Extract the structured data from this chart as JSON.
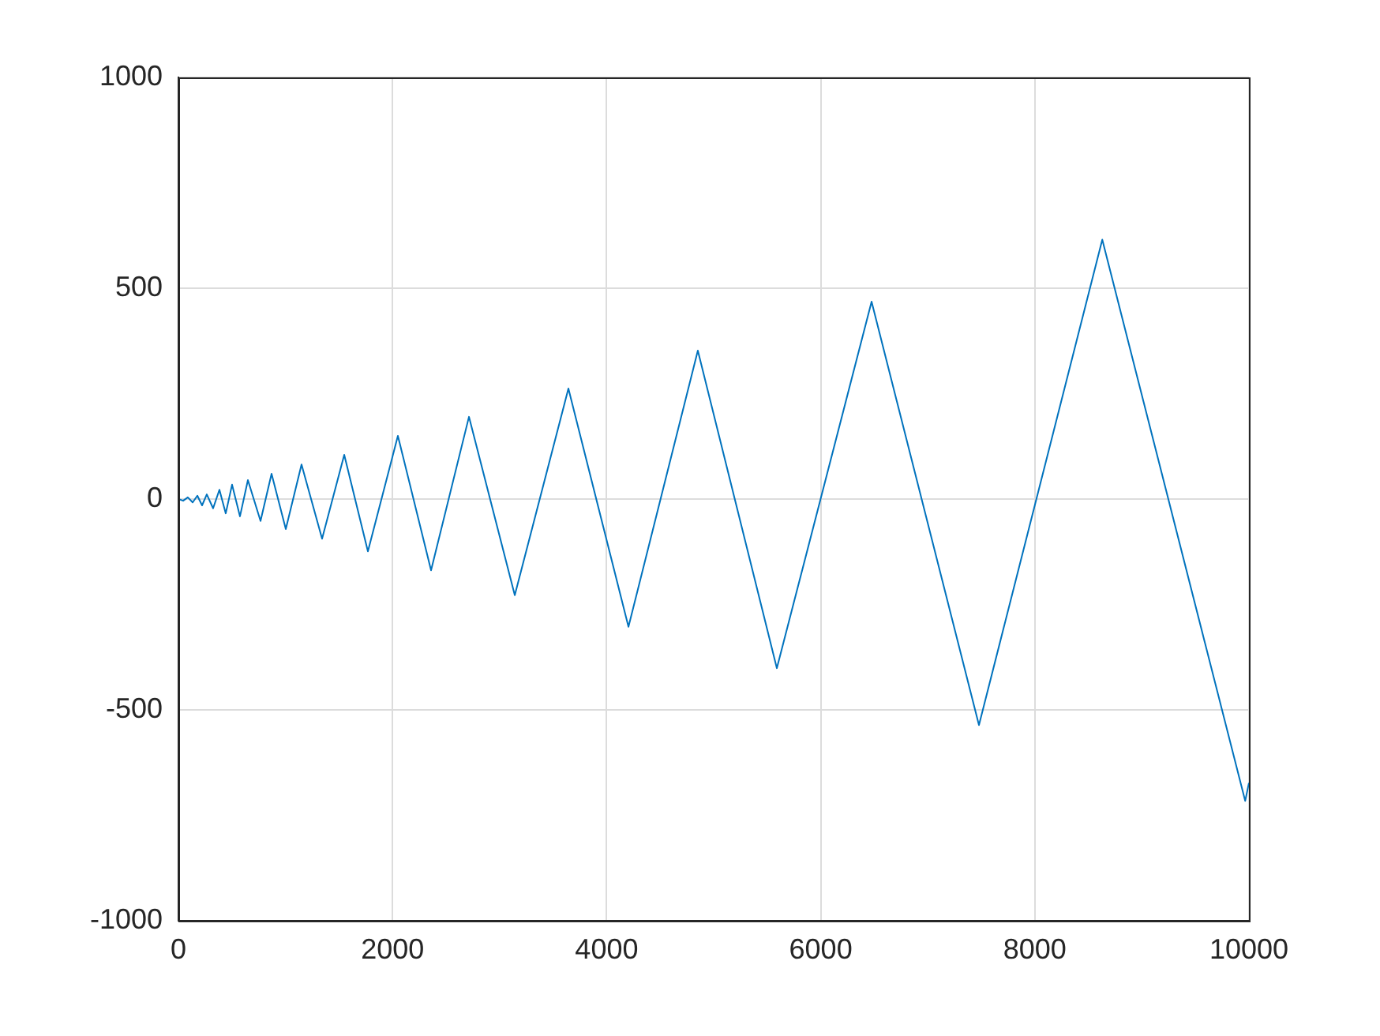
{
  "chart_data": {
    "type": "line",
    "x": [
      0,
      44,
      88,
      133,
      177,
      221,
      265,
      324,
      383,
      442,
      501,
      575,
      649,
      767,
      870,
      1003,
      1150,
      1342,
      1549,
      1770,
      2050,
      2360,
      2714,
      3142,
      3643,
      4204,
      4852,
      5590,
      6475,
      7478,
      8630,
      9965,
      10000
    ],
    "series": [
      {
        "color": "#0072bd",
        "values": [
          0,
          -4,
          4,
          -8,
          8,
          -15,
          11,
          -22,
          22,
          -34,
          34,
          -41,
          45,
          -52,
          60,
          -71,
          82,
          -94,
          105,
          -124,
          150,
          -169,
          195,
          -228,
          262,
          -303,
          352,
          -401,
          468,
          -536,
          615,
          -716,
          -673
        ]
      }
    ],
    "xlim": [
      0,
      10000
    ],
    "xticks": [
      0,
      2000,
      4000,
      6000,
      8000,
      10000
    ],
    "ylim": [
      -1000,
      1000
    ],
    "yticks": [
      -1000,
      -500,
      0,
      500,
      1000
    ],
    "grid": true,
    "legend": false,
    "marker": "none",
    "line_style": "solid"
  }
}
